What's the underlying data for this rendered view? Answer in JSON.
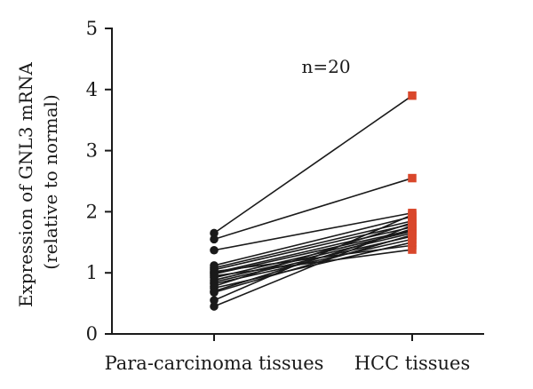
{
  "chart_data": {
    "type": "paired-line",
    "categories": [
      "Para-carcinoma tissues",
      "HCC tissues"
    ],
    "ylabel": [
      "Expression of GNL3 mRNA",
      "(relative to normal)"
    ],
    "ylim": [
      0,
      5
    ],
    "yticks": [
      "0",
      "1",
      "2",
      "3",
      "4",
      "5"
    ],
    "annotation": "n=20",
    "grid": false,
    "colors": {
      "para": "#1a1a1a",
      "hcc": "#d9472b",
      "line": "#1a1a1a"
    },
    "pairs": [
      {
        "para": 1.65,
        "hcc": 3.9
      },
      {
        "para": 1.55,
        "hcc": 2.55
      },
      {
        "para": 1.37,
        "hcc": 1.98
      },
      {
        "para": 1.12,
        "hcc": 1.92
      },
      {
        "para": 1.08,
        "hcc": 1.85
      },
      {
        "para": 1.05,
        "hcc": 1.8
      },
      {
        "para": 1.02,
        "hcc": 1.45
      },
      {
        "para": 1.0,
        "hcc": 1.75
      },
      {
        "para": 0.98,
        "hcc": 1.7
      },
      {
        "para": 0.95,
        "hcc": 1.38
      },
      {
        "para": 0.92,
        "hcc": 1.68
      },
      {
        "para": 0.88,
        "hcc": 1.65
      },
      {
        "para": 0.85,
        "hcc": 1.6
      },
      {
        "para": 0.82,
        "hcc": 1.55
      },
      {
        "para": 0.78,
        "hcc": 1.82
      },
      {
        "para": 0.75,
        "hcc": 1.5
      },
      {
        "para": 0.7,
        "hcc": 1.72
      },
      {
        "para": 0.68,
        "hcc": 1.62
      },
      {
        "para": 0.55,
        "hcc": 1.95
      },
      {
        "para": 0.45,
        "hcc": 1.78
      }
    ]
  }
}
